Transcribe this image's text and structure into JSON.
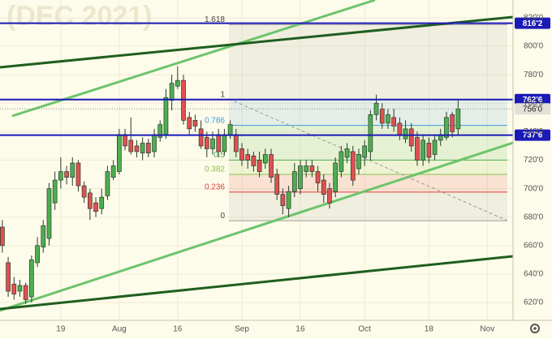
{
  "chart_data": {
    "type": "candlestick",
    "watermark": "(DEC 2021)",
    "up_color": "#4caf50",
    "down_color": "#e05050",
    "open": [
      673,
      648,
      633,
      628,
      632,
      624,
      648,
      659,
      665,
      690,
      706,
      712,
      708,
      718,
      702,
      697,
      690,
      686,
      695,
      708,
      712,
      738,
      734,
      730,
      725,
      732,
      726,
      736,
      738,
      762,
      772,
      776,
      750,
      748,
      742,
      736,
      728,
      738,
      726,
      738,
      738,
      728,
      724,
      723,
      720,
      718,
      724,
      710,
      696,
      686,
      698,
      700,
      712,
      716,
      712,
      706,
      700,
      698,
      712,
      722,
      726,
      714,
      722,
      726,
      752,
      756,
      746,
      750,
      746,
      735,
      742,
      736,
      720,
      732,
      724,
      734,
      736,
      752,
      742
    ],
    "high": [
      678,
      652,
      638,
      636,
      634,
      653,
      666,
      678,
      704,
      712,
      722,
      716,
      722,
      720,
      705,
      700,
      694,
      700,
      716,
      720,
      742,
      742,
      750,
      734,
      736,
      735,
      742,
      748,
      770,
      780,
      786,
      780,
      754,
      752,
      748,
      740,
      740,
      742,
      742,
      748,
      742,
      732,
      728,
      726,
      726,
      728,
      728,
      714,
      700,
      702,
      718,
      720,
      720,
      720,
      716,
      710,
      704,
      722,
      730,
      732,
      730,
      728,
      734,
      755,
      766,
      760,
      756,
      756,
      750,
      748,
      746,
      740,
      738,
      736,
      738,
      742,
      754,
      754,
      762
    ],
    "low": [
      655,
      624,
      622,
      624,
      619,
      620,
      645,
      655,
      660,
      685,
      700,
      703,
      702,
      698,
      690,
      678,
      680,
      682,
      692,
      706,
      710,
      727,
      724,
      722,
      720,
      722,
      722,
      733,
      735,
      755,
      770,
      745,
      738,
      740,
      728,
      722,
      724,
      722,
      723,
      735,
      722,
      716,
      714,
      712,
      708,
      714,
      704,
      692,
      682,
      680,
      694,
      696,
      708,
      708,
      698,
      690,
      686,
      694,
      708,
      718,
      702,
      710,
      716,
      720,
      748,
      742,
      742,
      740,
      734,
      732,
      726,
      716,
      716,
      718,
      720,
      730,
      734,
      736,
      738
    ],
    "close": [
      660,
      628,
      626,
      632,
      622,
      650,
      660,
      674,
      700,
      706,
      712,
      708,
      718,
      702,
      694,
      686,
      684,
      694,
      712,
      716,
      738,
      730,
      726,
      726,
      732,
      725,
      738,
      745,
      764,
      774,
      776,
      748,
      742,
      744,
      730,
      728,
      735,
      726,
      738,
      745,
      726,
      720,
      720,
      716,
      712,
      724,
      708,
      696,
      688,
      698,
      712,
      716,
      716,
      712,
      704,
      696,
      690,
      718,
      726,
      728,
      706,
      724,
      730,
      752,
      760,
      746,
      752,
      744,
      738,
      742,
      730,
      720,
      734,
      722,
      734,
      738,
      750,
      740,
      756
    ],
    "xlim": [
      -0.4,
      87.4
    ],
    "xticks": [
      {
        "value": 10,
        "label": "19"
      },
      {
        "value": 20,
        "label": "Aug"
      },
      {
        "value": 30,
        "label": "16"
      },
      {
        "value": 41,
        "label": "Sep"
      },
      {
        "value": 51,
        "label": "16"
      },
      {
        "value": 62,
        "label": "Oct"
      },
      {
        "value": 73,
        "label": "18"
      },
      {
        "value": 83,
        "label": "Nov"
      }
    ],
    "ylim": [
      607.5,
      832.5
    ],
    "yticks": [
      {
        "value": 620,
        "label": "620'0"
      },
      {
        "value": 640,
        "label": "640'0"
      },
      {
        "value": 660,
        "label": "660'0"
      },
      {
        "value": 680,
        "label": "680'0"
      },
      {
        "value": 700,
        "label": "700'0"
      },
      {
        "value": 720,
        "label": "720'0"
      },
      {
        "value": 740,
        "label": "740'0"
      },
      {
        "value": 760,
        "label": "760'0"
      },
      {
        "value": 780,
        "label": "780'0"
      },
      {
        "value": 800,
        "label": "800'0"
      },
      {
        "value": 820,
        "label": "820'0"
      }
    ],
    "grid": true,
    "price_lines": [
      {
        "value": 816.2,
        "label": "816'2",
        "color": "#1a1ab8"
      },
      {
        "value": 762.6,
        "label": "762'6",
        "color": "#1a1ab8"
      },
      {
        "value": 737.6,
        "label": "737'6",
        "color": "#1a1ab8"
      }
    ],
    "last_price": {
      "value": 756,
      "label": "756'0"
    },
    "fib": {
      "low": 677.5,
      "high": 762.6,
      "levels": [
        {
          "value": 1.618,
          "color": "#9e9e9e"
        },
        {
          "value": 1,
          "color": "#9e9e9e"
        },
        {
          "value": 0.786,
          "color": "#3d9be0"
        },
        {
          "value": 0.5,
          "color": "#4caf50"
        },
        {
          "value": 0.382,
          "color": "#8bc34a"
        },
        {
          "value": 0.236,
          "color": "#e04040"
        },
        {
          "value": 0,
          "color": "#9e9e9e"
        }
      ]
    }
  }
}
